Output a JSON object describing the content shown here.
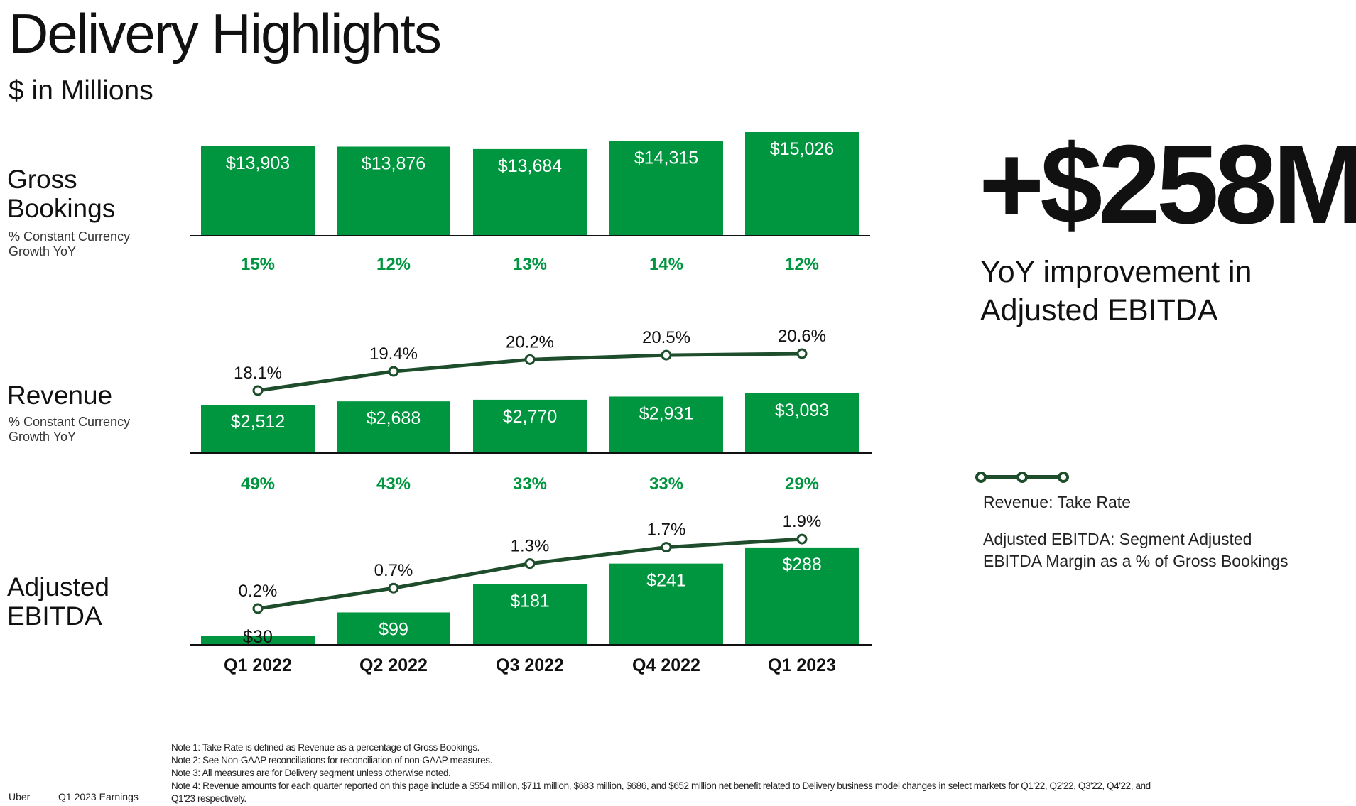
{
  "header": {
    "title": "Delivery Highlights",
    "subtitle": "$ in Millions"
  },
  "rows": {
    "gross_bookings": {
      "label_line1": "Gross",
      "label_line2": "Bookings",
      "sub_line1": "% Constant Currency",
      "sub_line2": "Growth YoY"
    },
    "revenue": {
      "label": "Revenue",
      "sub_line1": "% Constant Currency",
      "sub_line2": "Growth YoY"
    },
    "ebitda": {
      "label_line1": "Adjusted",
      "label_line2": "EBITDA"
    }
  },
  "highlight": {
    "value": "+$258M",
    "line1": "YoY improvement in",
    "line2": "Adjusted EBITDA"
  },
  "legend": {
    "take_rate": "Revenue: Take Rate",
    "margin_line1": "Adjusted EBITDA: Segment Adjusted",
    "margin_line2": "EBITDA Margin as a % of Gross Bookings"
  },
  "notes": [
    "Note 1: Take Rate is defined as Revenue as a percentage of Gross Bookings.",
    "Note 2: See Non-GAAP reconciliations for reconciliation of non-GAAP measures.",
    "Note 3: All measures are for Delivery segment unless otherwise noted.",
    "Note 4: Revenue amounts for each quarter reported on this page include a $554 million, $711 million, $683 million, $686, and $652 million net benefit related to Delivery business model changes in select markets for Q1'22, Q2'22, Q3'22, Q4'22, and",
    "Q1'23 respectively."
  ],
  "footer": {
    "brand": "Uber",
    "report": "Q1 2023 Earnings"
  },
  "colors": {
    "bar": "#00963f",
    "growth_text": "#00963f",
    "line": "#1e4d2b"
  },
  "chart_data": [
    {
      "type": "bar",
      "name": "Gross Bookings",
      "categories": [
        "Q1 2022",
        "Q2 2022",
        "Q3 2022",
        "Q4 2022",
        "Q1 2023"
      ],
      "values": [
        13903,
        13876,
        13684,
        14315,
        15026
      ],
      "labels": [
        "$13,903",
        "$13,876",
        "$13,684",
        "$14,315",
        "$15,026"
      ],
      "growth": [
        "15%",
        "12%",
        "13%",
        "14%",
        "12%"
      ]
    },
    {
      "type": "bar",
      "name": "Revenue",
      "categories": [
        "Q1 2022",
        "Q2 2022",
        "Q3 2022",
        "Q4 2022",
        "Q1 2023"
      ],
      "values": [
        2512,
        2688,
        2770,
        2931,
        3093
      ],
      "labels": [
        "$2,512",
        "$2,688",
        "$2,770",
        "$2,931",
        "$3,093"
      ],
      "growth": [
        "49%",
        "43%",
        "33%",
        "33%",
        "29%"
      ],
      "line": {
        "name": "Take Rate",
        "values": [
          18.1,
          19.4,
          20.2,
          20.5,
          20.6
        ],
        "labels": [
          "18.1%",
          "19.4%",
          "20.2%",
          "20.5%",
          "20.6%"
        ]
      }
    },
    {
      "type": "bar",
      "name": "Adjusted EBITDA",
      "categories": [
        "Q1 2022",
        "Q2 2022",
        "Q3 2022",
        "Q4 2022",
        "Q1 2023"
      ],
      "values": [
        30,
        99,
        181,
        241,
        288
      ],
      "labels": [
        "$30",
        "$99",
        "$181",
        "$241",
        "$288"
      ],
      "line": {
        "name": "Margin",
        "values": [
          0.2,
          0.7,
          1.3,
          1.7,
          1.9
        ],
        "labels": [
          "0.2%",
          "0.7%",
          "1.3%",
          "1.7%",
          "1.9%"
        ]
      }
    }
  ]
}
